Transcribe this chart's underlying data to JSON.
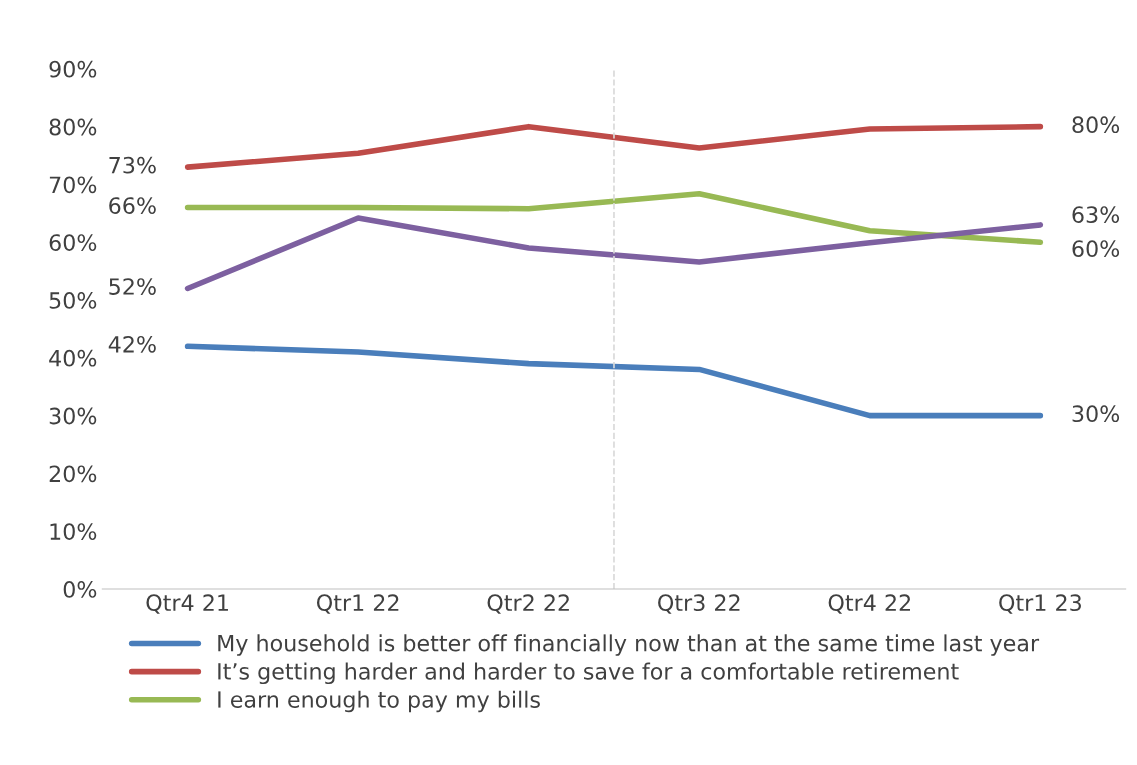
{
  "chart_data": {
    "type": "line",
    "categories": [
      "Qtr4 21",
      "Qtr1 22",
      "Qtr2 22",
      "Qtr3 22",
      "Qtr4 22",
      "Qtr1 23"
    ],
    "series": [
      {
        "name": "My household is better off financially now than at the same time last year",
        "color": "#4a7ebb",
        "values": [
          42,
          41,
          39,
          38,
          30,
          30
        ],
        "value_labels": [
          "42%",
          null,
          null,
          null,
          null,
          "30%"
        ]
      },
      {
        "name": "It’s getting harder and harder to save for a comfortable retirement",
        "color": "#be4b48",
        "values": [
          73,
          75.4,
          80,
          76.3,
          79.6,
          80
        ],
        "value_labels": [
          "73%",
          null,
          null,
          null,
          null,
          "80%"
        ]
      },
      {
        "name": "I earn enough to pay my bills",
        "color": "#98b954",
        "values": [
          66,
          66,
          65.8,
          68.4,
          62,
          60
        ],
        "value_labels": [
          "66%",
          null,
          null,
          null,
          null,
          "60%"
        ]
      },
      {
        "color": "#7d60a0",
        "values": [
          52,
          64.2,
          59,
          56.6,
          59.9,
          63
        ],
        "value_labels": [
          "52%",
          null,
          null,
          null,
          null,
          "63%"
        ]
      }
    ],
    "ylim": [
      0,
      90
    ],
    "yticks": [
      {
        "value": 0,
        "label": "0%"
      },
      {
        "value": 10,
        "label": "10%"
      },
      {
        "value": 20,
        "label": "20%"
      },
      {
        "value": 30,
        "label": "30%"
      },
      {
        "value": 40,
        "label": "40%"
      },
      {
        "value": 50,
        "label": "50%"
      },
      {
        "value": 60,
        "label": "60%"
      },
      {
        "value": 70,
        "label": "70%"
      },
      {
        "value": 80,
        "label": "80%"
      },
      {
        "value": 90,
        "label": "90%"
      }
    ],
    "grid": false,
    "legend": "bottom",
    "marker": "none",
    "line_style": "solid"
  }
}
